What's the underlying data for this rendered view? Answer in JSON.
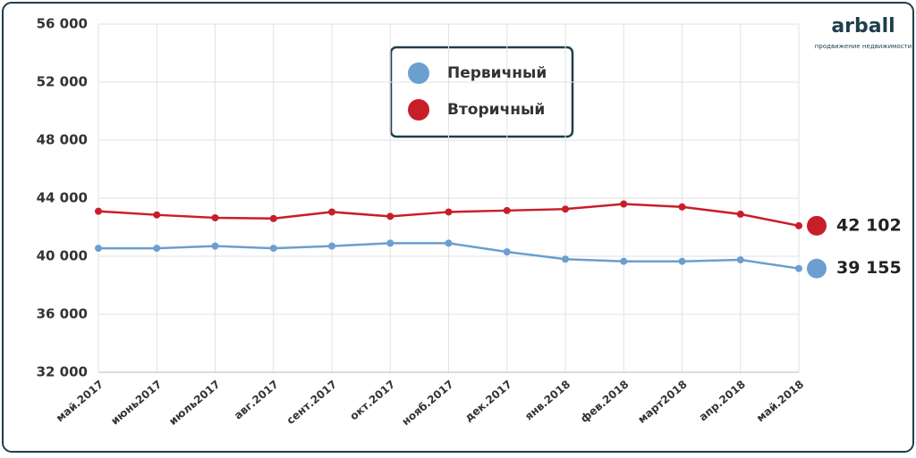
{
  "chart_data": {
    "type": "line",
    "categories": [
      "май.2017",
      "июнь2017",
      "июль2017",
      "авг.2017",
      "сент.2017",
      "окт.2017",
      "нояб.2017",
      "дек.2017",
      "янв.2018",
      "фев.2018",
      "март2018",
      "апр.2018",
      "май.2018"
    ],
    "series": [
      {
        "name": "Первичный",
        "color": "#6a9fd0",
        "values": [
          40550,
          40550,
          40700,
          40550,
          40700,
          40900,
          40900,
          40300,
          39800,
          39650,
          39650,
          39750,
          39155
        ],
        "value_labels": [
          null,
          null,
          null,
          null,
          null,
          null,
          null,
          null,
          null,
          null,
          null,
          null,
          "39 155"
        ]
      },
      {
        "name": "Вторичный",
        "color": "#c81e28",
        "values": [
          43100,
          42850,
          42650,
          42600,
          43050,
          42750,
          43050,
          43150,
          43250,
          43600,
          43400,
          42900,
          42102
        ],
        "value_labels": [
          null,
          null,
          null,
          null,
          null,
          null,
          null,
          null,
          null,
          null,
          null,
          null,
          "42 102"
        ]
      }
    ],
    "ylim": [
      32000,
      56000
    ],
    "yticks": [
      {
        "value": 32000,
        "label": "32 000"
      },
      {
        "value": 36000,
        "label": "36 000"
      },
      {
        "value": 40000,
        "label": "40 000"
      },
      {
        "value": 44000,
        "label": "44 000"
      },
      {
        "value": 48000,
        "label": "48 000"
      },
      {
        "value": 52000,
        "label": "52 000"
      },
      {
        "value": 56000,
        "label": "56 000"
      }
    ],
    "grid": true,
    "legend": "top"
  },
  "logo": {
    "name": "arball",
    "tagline": "продвижение недвижимости"
  }
}
